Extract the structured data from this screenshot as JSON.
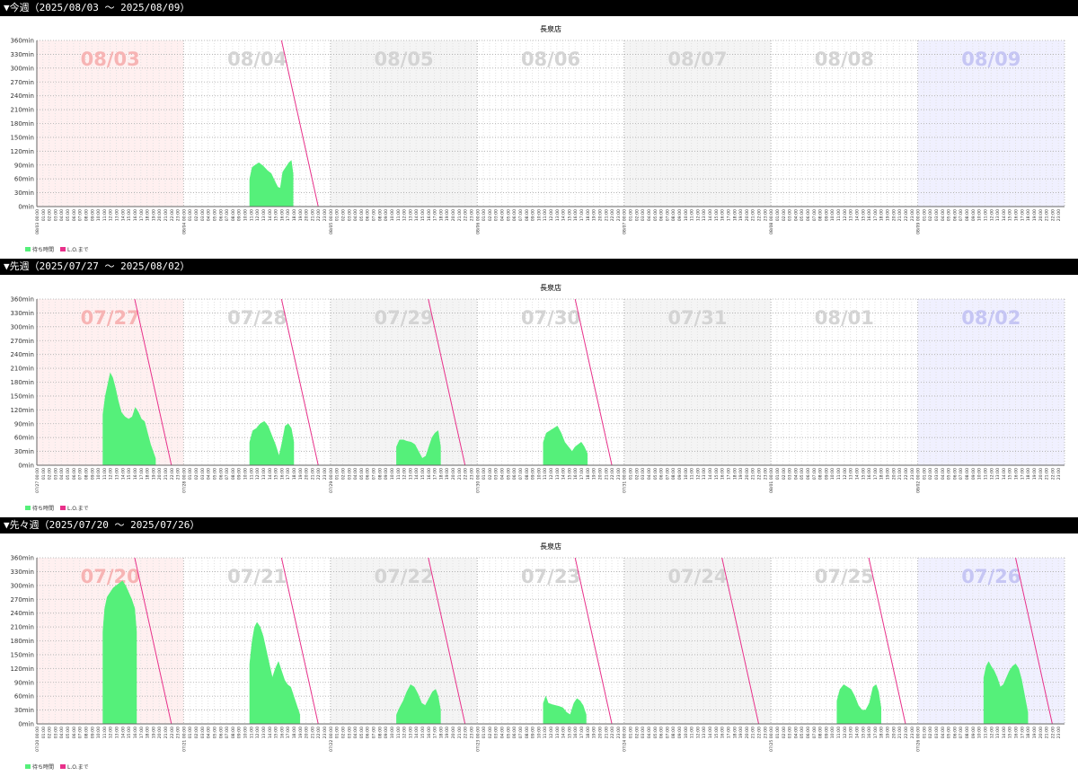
{
  "chart_data": [
    {
      "type": "area",
      "heading": "▼今週（2025/08/03 〜 2025/08/09）",
      "title": "長泉店",
      "y_unit": "min",
      "ylim": [
        0,
        360
      ],
      "yticks": [
        0,
        30,
        60,
        90,
        120,
        150,
        180,
        210,
        240,
        270,
        300,
        330,
        360
      ],
      "grid": true,
      "legend_position": "bottom-left",
      "legend": [
        "待ち時間",
        "L.O.まで"
      ],
      "colors": {
        "wait": "#55f07a",
        "lo": "#e8308a",
        "sunday": "#fff0f0",
        "saturday": "#f0f0ff",
        "weekday_alt": "#f4f4f4"
      },
      "days": [
        {
          "label": "08/03",
          "tick": "08/03",
          "date_index": 0,
          "series": []
        },
        {
          "label": "08/04",
          "tick": "08/04",
          "date_index": 1,
          "series": [
            {
              "h": 10.8,
              "v": 60
            },
            {
              "h": 11.2,
              "v": 85
            },
            {
              "h": 11.7,
              "v": 90
            },
            {
              "h": 12.3,
              "v": 95
            },
            {
              "h": 13.0,
              "v": 88
            },
            {
              "h": 13.7,
              "v": 78
            },
            {
              "h": 14.3,
              "v": 72
            },
            {
              "h": 14.9,
              "v": 55
            },
            {
              "h": 15.4,
              "v": 42
            },
            {
              "h": 15.8,
              "v": 40
            },
            {
              "h": 16.2,
              "v": 75
            },
            {
              "h": 16.7,
              "v": 85
            },
            {
              "h": 17.2,
              "v": 95
            },
            {
              "h": 17.6,
              "v": 100
            },
            {
              "h": 17.9,
              "v": 70
            }
          ],
          "lo": true
        },
        {
          "label": "08/05",
          "tick": "08/05",
          "date_index": 2,
          "series": []
        },
        {
          "label": "08/06",
          "tick": "08/06",
          "date_index": 3,
          "series": []
        },
        {
          "label": "08/07",
          "tick": "08/07",
          "date_index": 4,
          "series": []
        },
        {
          "label": "08/08",
          "tick": "08/08",
          "date_index": 5,
          "series": []
        },
        {
          "label": "08/09",
          "tick": "08/09",
          "date_index": 6,
          "series": []
        }
      ]
    },
    {
      "type": "area",
      "heading": "▼先週（2025/07/27 〜 2025/08/02）",
      "title": "長泉店",
      "y_unit": "min",
      "ylim": [
        0,
        360
      ],
      "yticks": [
        0,
        30,
        60,
        90,
        120,
        150,
        180,
        210,
        240,
        270,
        300,
        330,
        360
      ],
      "grid": true,
      "legend_position": "bottom-left",
      "legend": [
        "待ち時間",
        "L.O.まで"
      ],
      "days": [
        {
          "label": "07/27",
          "tick": "07/27",
          "date_index": 0,
          "series": [
            {
              "h": 10.8,
              "v": 110
            },
            {
              "h": 11.2,
              "v": 150
            },
            {
              "h": 11.6,
              "v": 175
            },
            {
              "h": 12.0,
              "v": 200
            },
            {
              "h": 12.4,
              "v": 190
            },
            {
              "h": 12.8,
              "v": 170
            },
            {
              "h": 13.3,
              "v": 140
            },
            {
              "h": 13.8,
              "v": 115
            },
            {
              "h": 14.4,
              "v": 105
            },
            {
              "h": 15.0,
              "v": 100
            },
            {
              "h": 15.6,
              "v": 105
            },
            {
              "h": 16.1,
              "v": 125
            },
            {
              "h": 16.6,
              "v": 115
            },
            {
              "h": 17.1,
              "v": 100
            },
            {
              "h": 17.6,
              "v": 95
            },
            {
              "h": 18.1,
              "v": 70
            },
            {
              "h": 18.6,
              "v": 45
            },
            {
              "h": 19.0,
              "v": 30
            },
            {
              "h": 19.4,
              "v": 15
            }
          ],
          "lo": true
        },
        {
          "label": "07/28",
          "tick": "07/28",
          "date_index": 1,
          "series": [
            {
              "h": 10.8,
              "v": 50
            },
            {
              "h": 11.3,
              "v": 75
            },
            {
              "h": 11.9,
              "v": 80
            },
            {
              "h": 12.5,
              "v": 90
            },
            {
              "h": 13.2,
              "v": 95
            },
            {
              "h": 13.8,
              "v": 85
            },
            {
              "h": 14.4,
              "v": 65
            },
            {
              "h": 15.0,
              "v": 45
            },
            {
              "h": 15.6,
              "v": 20
            },
            {
              "h": 16.1,
              "v": 50
            },
            {
              "h": 16.6,
              "v": 85
            },
            {
              "h": 17.1,
              "v": 90
            },
            {
              "h": 17.6,
              "v": 80
            },
            {
              "h": 18.0,
              "v": 50
            }
          ],
          "lo": true
        },
        {
          "label": "07/29",
          "tick": "07/29",
          "date_index": 2,
          "series": [
            {
              "h": 10.8,
              "v": 40
            },
            {
              "h": 11.3,
              "v": 55
            },
            {
              "h": 11.9,
              "v": 55
            },
            {
              "h": 12.5,
              "v": 52
            },
            {
              "h": 13.2,
              "v": 50
            },
            {
              "h": 13.8,
              "v": 45
            },
            {
              "h": 14.4,
              "v": 30
            },
            {
              "h": 15.0,
              "v": 15
            },
            {
              "h": 15.6,
              "v": 20
            },
            {
              "h": 16.1,
              "v": 40
            },
            {
              "h": 16.6,
              "v": 60
            },
            {
              "h": 17.1,
              "v": 70
            },
            {
              "h": 17.6,
              "v": 75
            },
            {
              "h": 18.0,
              "v": 40
            }
          ],
          "lo": true
        },
        {
          "label": "07/30",
          "tick": "07/30",
          "date_index": 3,
          "series": [
            {
              "h": 10.8,
              "v": 50
            },
            {
              "h": 11.3,
              "v": 70
            },
            {
              "h": 11.9,
              "v": 75
            },
            {
              "h": 12.5,
              "v": 80
            },
            {
              "h": 13.1,
              "v": 85
            },
            {
              "h": 13.7,
              "v": 70
            },
            {
              "h": 14.3,
              "v": 50
            },
            {
              "h": 14.9,
              "v": 40
            },
            {
              "h": 15.5,
              "v": 30
            },
            {
              "h": 16.0,
              "v": 40
            },
            {
              "h": 16.5,
              "v": 45
            },
            {
              "h": 17.0,
              "v": 50
            },
            {
              "h": 17.5,
              "v": 40
            },
            {
              "h": 18.0,
              "v": 25
            }
          ],
          "lo": true
        },
        {
          "label": "07/31",
          "tick": "07/31",
          "date_index": 4,
          "series": []
        },
        {
          "label": "08/01",
          "tick": "08/01",
          "date_index": 5,
          "series": []
        },
        {
          "label": "08/02",
          "tick": "08/02",
          "date_index": 6,
          "series": []
        }
      ]
    },
    {
      "type": "area",
      "heading": "▼先々週（2025/07/20 〜 2025/07/26）",
      "title": "長泉店",
      "y_unit": "min",
      "ylim": [
        0,
        360
      ],
      "yticks": [
        0,
        30,
        60,
        90,
        120,
        150,
        180,
        210,
        240,
        270,
        300,
        330,
        360
      ],
      "grid": true,
      "legend_position": "bottom-left",
      "legend": [
        "待ち時間",
        "L.O.まで"
      ],
      "days": [
        {
          "label": "07/20",
          "tick": "07/20",
          "date_index": 0,
          "series": [
            {
              "h": 10.8,
              "v": 200
            },
            {
              "h": 11.1,
              "v": 250
            },
            {
              "h": 11.5,
              "v": 275
            },
            {
              "h": 12.0,
              "v": 285
            },
            {
              "h": 12.5,
              "v": 295
            },
            {
              "h": 13.0,
              "v": 300
            },
            {
              "h": 13.5,
              "v": 305
            },
            {
              "h": 14.0,
              "v": 310
            },
            {
              "h": 14.5,
              "v": 300
            },
            {
              "h": 15.0,
              "v": 285
            },
            {
              "h": 15.5,
              "v": 270
            },
            {
              "h": 16.0,
              "v": 250
            },
            {
              "h": 16.3,
              "v": 200
            }
          ],
          "lo": true
        },
        {
          "label": "07/21",
          "tick": "07/21",
          "date_index": 1,
          "series": [
            {
              "h": 10.8,
              "v": 130
            },
            {
              "h": 11.2,
              "v": 180
            },
            {
              "h": 11.6,
              "v": 210
            },
            {
              "h": 12.0,
              "v": 220
            },
            {
              "h": 12.5,
              "v": 210
            },
            {
              "h": 13.0,
              "v": 190
            },
            {
              "h": 13.5,
              "v": 160
            },
            {
              "h": 14.0,
              "v": 130
            },
            {
              "h": 14.5,
              "v": 100
            },
            {
              "h": 15.0,
              "v": 120
            },
            {
              "h": 15.5,
              "v": 135
            },
            {
              "h": 16.0,
              "v": 115
            },
            {
              "h": 16.5,
              "v": 95
            },
            {
              "h": 17.0,
              "v": 85
            },
            {
              "h": 17.5,
              "v": 80
            },
            {
              "h": 18.0,
              "v": 60
            },
            {
              "h": 18.5,
              "v": 40
            },
            {
              "h": 19.0,
              "v": 20
            }
          ],
          "lo": true
        },
        {
          "label": "07/22",
          "tick": "07/22",
          "date_index": 2,
          "series": [
            {
              "h": 10.8,
              "v": 20
            },
            {
              "h": 11.3,
              "v": 35
            },
            {
              "h": 11.9,
              "v": 50
            },
            {
              "h": 12.5,
              "v": 70
            },
            {
              "h": 13.1,
              "v": 85
            },
            {
              "h": 13.7,
              "v": 80
            },
            {
              "h": 14.3,
              "v": 65
            },
            {
              "h": 14.9,
              "v": 45
            },
            {
              "h": 15.5,
              "v": 40
            },
            {
              "h": 16.1,
              "v": 55
            },
            {
              "h": 16.7,
              "v": 70
            },
            {
              "h": 17.2,
              "v": 75
            },
            {
              "h": 17.6,
              "v": 60
            },
            {
              "h": 18.0,
              "v": 30
            }
          ],
          "lo": true
        },
        {
          "label": "07/23",
          "tick": "07/23",
          "date_index": 3,
          "series": [
            {
              "h": 10.8,
              "v": 45
            },
            {
              "h": 11.2,
              "v": 60
            },
            {
              "h": 11.6,
              "v": 45
            },
            {
              "h": 12.2,
              "v": 42
            },
            {
              "h": 12.8,
              "v": 40
            },
            {
              "h": 13.4,
              "v": 38
            },
            {
              "h": 14.0,
              "v": 35
            },
            {
              "h": 14.6,
              "v": 25
            },
            {
              "h": 15.2,
              "v": 20
            },
            {
              "h": 15.8,
              "v": 45
            },
            {
              "h": 16.3,
              "v": 55
            },
            {
              "h": 16.8,
              "v": 50
            },
            {
              "h": 17.3,
              "v": 40
            },
            {
              "h": 17.8,
              "v": 20
            }
          ],
          "lo": true
        },
        {
          "label": "07/24",
          "tick": "07/24",
          "date_index": 4,
          "series": [],
          "lo": true
        },
        {
          "label": "07/25",
          "tick": "07/25",
          "date_index": 5,
          "series": [
            {
              "h": 10.8,
              "v": 50
            },
            {
              "h": 11.3,
              "v": 75
            },
            {
              "h": 11.9,
              "v": 85
            },
            {
              "h": 12.5,
              "v": 80
            },
            {
              "h": 13.1,
              "v": 75
            },
            {
              "h": 13.7,
              "v": 60
            },
            {
              "h": 14.3,
              "v": 40
            },
            {
              "h": 14.9,
              "v": 30
            },
            {
              "h": 15.5,
              "v": 30
            },
            {
              "h": 16.1,
              "v": 45
            },
            {
              "h": 16.7,
              "v": 80
            },
            {
              "h": 17.2,
              "v": 85
            },
            {
              "h": 17.6,
              "v": 70
            },
            {
              "h": 18.0,
              "v": 35
            }
          ],
          "lo": true
        },
        {
          "label": "07/26",
          "tick": "07/26",
          "date_index": 6,
          "series": [
            {
              "h": 10.8,
              "v": 100
            },
            {
              "h": 11.2,
              "v": 125
            },
            {
              "h": 11.6,
              "v": 135
            },
            {
              "h": 12.0,
              "v": 125
            },
            {
              "h": 12.5,
              "v": 115
            },
            {
              "h": 13.0,
              "v": 100
            },
            {
              "h": 13.5,
              "v": 80
            },
            {
              "h": 14.0,
              "v": 85
            },
            {
              "h": 14.5,
              "v": 100
            },
            {
              "h": 15.0,
              "v": 115
            },
            {
              "h": 15.5,
              "v": 125
            },
            {
              "h": 16.0,
              "v": 130
            },
            {
              "h": 16.5,
              "v": 120
            },
            {
              "h": 17.0,
              "v": 95
            },
            {
              "h": 17.5,
              "v": 60
            },
            {
              "h": 18.0,
              "v": 25
            }
          ],
          "lo": true
        }
      ]
    }
  ]
}
